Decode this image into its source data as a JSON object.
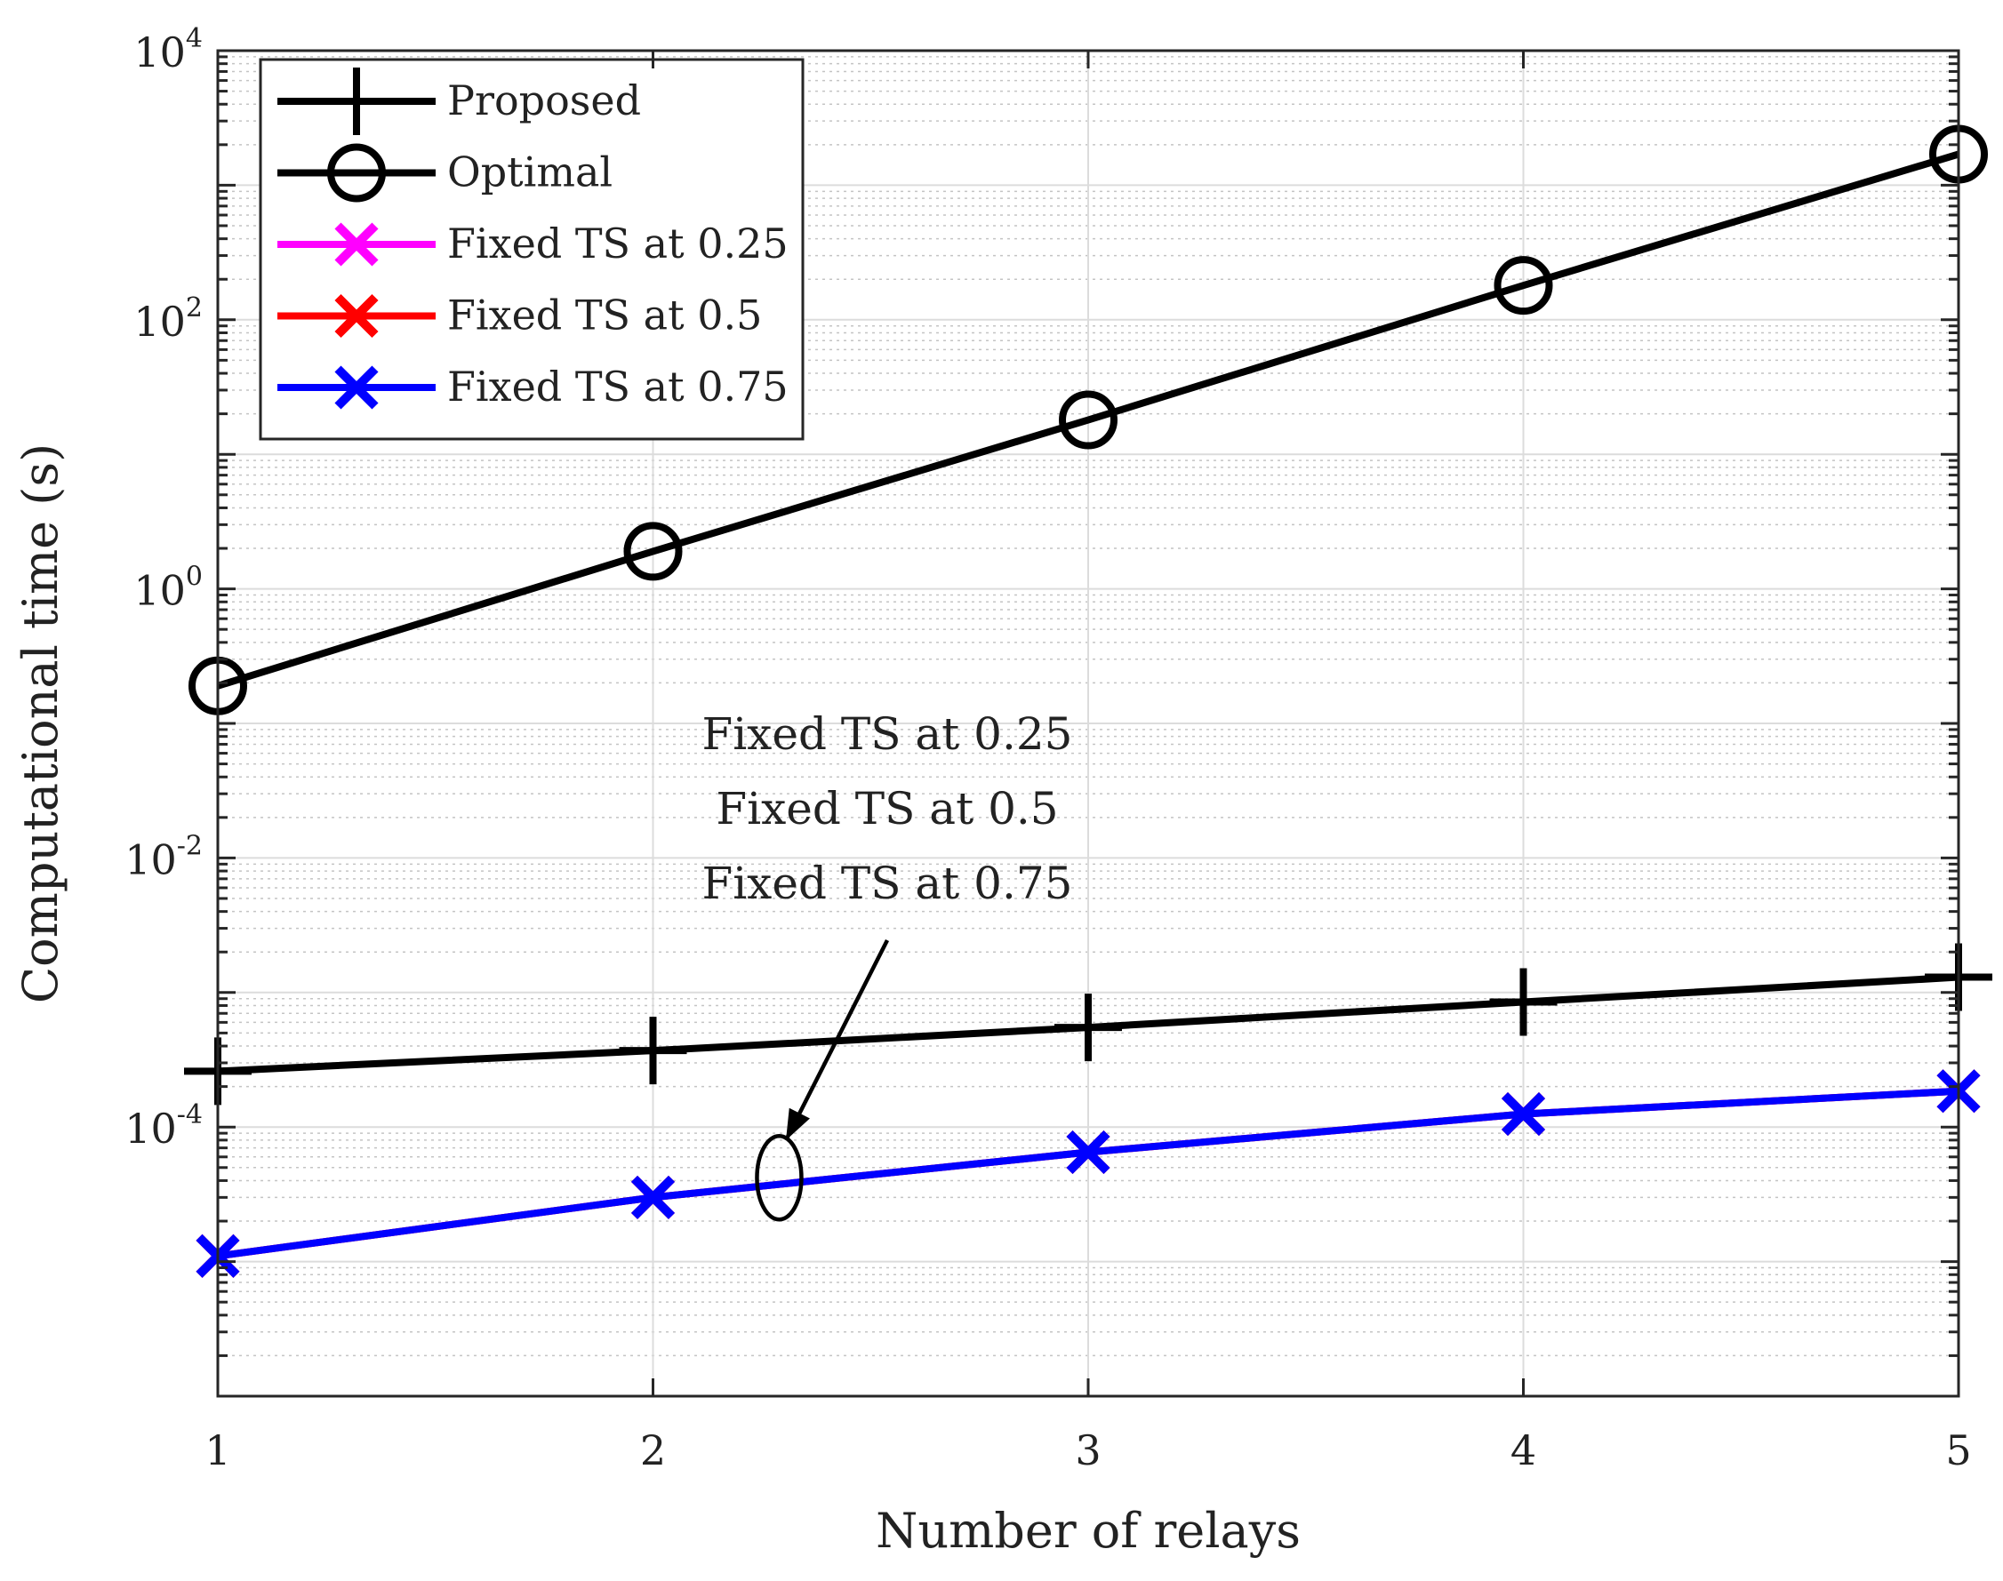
{
  "chart_data": {
    "type": "line",
    "title": "",
    "xlabel": "Number of relays",
    "ylabel": "Computational time (s)",
    "y_scale": "log",
    "xlim": [
      1,
      5
    ],
    "ylim": [
      1e-06,
      10000
    ],
    "grid": true,
    "minor_grid": true,
    "legend_position": "top-left",
    "x_ticks": [
      "1",
      "2",
      "3",
      "4",
      "5"
    ],
    "y_ticks": [
      {
        "base": "10",
        "exp": "4",
        "value": 10000
      },
      {
        "base": "10",
        "exp": "2",
        "value": 100
      },
      {
        "base": "10",
        "exp": "0",
        "value": 1
      },
      {
        "base": "10",
        "exp": "-2",
        "value": 0.01
      },
      {
        "base": "10",
        "exp": "-4",
        "value": 0.0001
      }
    ],
    "x": [
      1,
      2,
      3,
      4,
      5
    ],
    "series": [
      {
        "name": "Proposed",
        "color": "#000000",
        "marker": "plus",
        "values": [
          0.00026,
          0.00037,
          0.00055,
          0.00085,
          0.0013
        ]
      },
      {
        "name": "Optimal",
        "color": "#000000",
        "marker": "circle",
        "values": [
          0.19,
          1.9,
          18,
          180,
          1700
        ]
      },
      {
        "name": "Fixed TS at 0.25",
        "color": "#ff00ff",
        "marker": "x",
        "values": [
          1.1e-05,
          3e-05,
          6.5e-05,
          0.000125,
          0.000185
        ]
      },
      {
        "name": "Fixed TS at 0.5",
        "color": "#ff0000",
        "marker": "x",
        "values": [
          1.1e-05,
          3e-05,
          6.5e-05,
          0.000125,
          0.000185
        ]
      },
      {
        "name": "Fixed TS at 0.75",
        "color": "#0000ff",
        "marker": "x",
        "values": [
          1.1e-05,
          3e-05,
          6.5e-05,
          0.000125,
          0.000185
        ]
      }
    ],
    "annotation": {
      "lines": [
        "Fixed TS at 0.25",
        "Fixed TS at 0.5",
        "Fixed TS at 0.75"
      ]
    }
  }
}
